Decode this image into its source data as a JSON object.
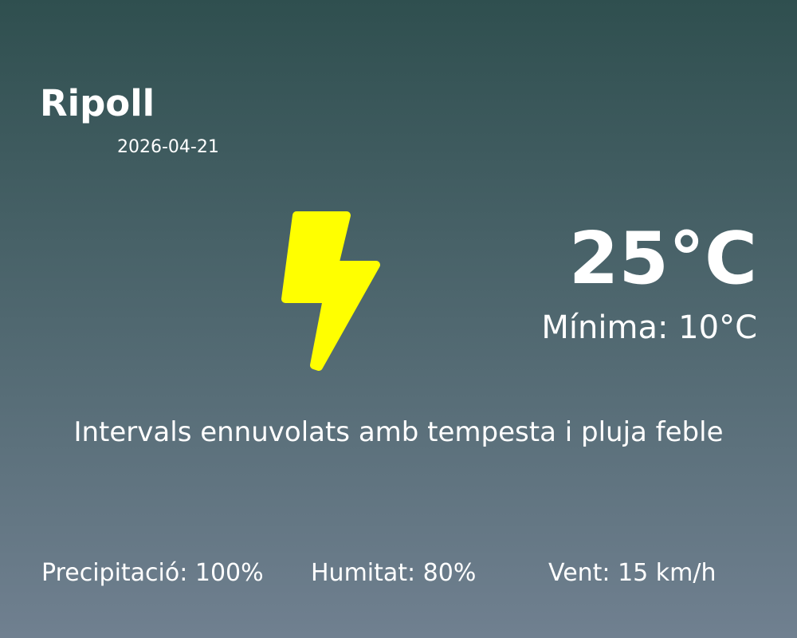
{
  "location": {
    "city": "Ripoll",
    "date": "2026-04-21"
  },
  "current": {
    "temperature": "25°C",
    "minimum": "Mínima: 10°C",
    "description": "Intervals ennuvolats amb tempesta i pluja feble",
    "icon": "lightning-bolt-icon",
    "icon_color": "#ffff00"
  },
  "stats": {
    "precipitation": "Precipitació: 100%",
    "humidity": "Humitat: 80%",
    "wind": "Vent: 15 km/h"
  },
  "colors": {
    "background_top": "#2f4f4f",
    "background_bottom": "#708090",
    "text": "#ffffff"
  }
}
